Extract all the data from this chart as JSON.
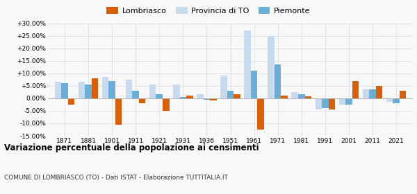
{
  "years": [
    1871,
    1881,
    1901,
    1911,
    1921,
    1931,
    1936,
    1951,
    1961,
    1971,
    1981,
    1991,
    2001,
    2011,
    2021
  ],
  "lombriasco": [
    -2.5,
    8.0,
    -10.5,
    -2.0,
    -5.0,
    1.0,
    -0.8,
    1.5,
    -12.5,
    1.2,
    0.8,
    -4.5,
    7.0,
    5.0,
    3.0
  ],
  "provincia_to": [
    6.5,
    6.5,
    8.5,
    7.5,
    5.5,
    5.5,
    1.5,
    9.0,
    27.0,
    25.0,
    2.5,
    -4.5,
    -2.5,
    3.5,
    -1.5
  ],
  "piemonte": [
    6.0,
    5.5,
    7.0,
    3.0,
    1.5,
    0.5,
    -0.5,
    3.0,
    11.0,
    13.5,
    1.5,
    -4.0,
    -2.5,
    3.5,
    -2.0
  ],
  "color_lombriasco": "#d95f02",
  "color_provincia": "#c6dbef",
  "color_piemonte": "#6baed6",
  "title": "Variazione percentuale della popolazione ai censimenti",
  "subtitle": "COMUNE DI LOMBRIASCO (TO) - Dati ISTAT - Elaborazione TUTTITALIA.IT",
  "ylim": [
    -15,
    30
  ],
  "yticks": [
    -15,
    -10,
    -5,
    0,
    5,
    10,
    15,
    20,
    25,
    30
  ],
  "background_color": "#f8f8f8",
  "grid_color": "#d8d8e8",
  "bar_width": 0.28
}
